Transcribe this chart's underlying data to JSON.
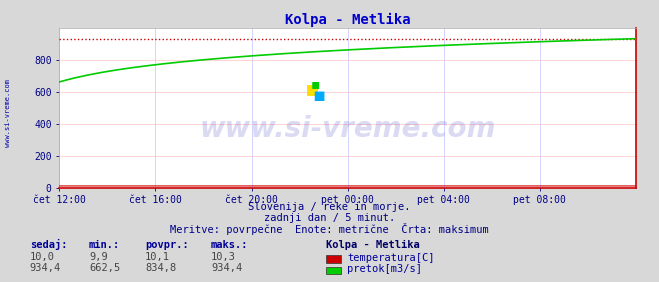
{
  "title": "Kolpa - Metlika",
  "title_color": "#0000cc",
  "bg_color": "#d8d8d8",
  "plot_bg_color": "#ffffff",
  "grid_color_h": "#ffcccc",
  "grid_color_v": "#ccccff",
  "xlabel_ticks": [
    "čet 12:00",
    "čet 16:00",
    "čet 20:00",
    "pet 00:00",
    "pet 04:00",
    "pet 08:00"
  ],
  "tick_color": "#000088",
  "ylabel_values": [
    0,
    200,
    400,
    600,
    800
  ],
  "ylim": [
    0,
    1000
  ],
  "xlim": [
    0,
    1152
  ],
  "xtick_positions": [
    0,
    192,
    384,
    576,
    768,
    960
  ],
  "watermark": "www.si-vreme.com",
  "watermark_color": "#3333bb",
  "watermark_alpha": 0.18,
  "subtitle1": "Slovenija / reke in morje.",
  "subtitle2": "zadnji dan / 5 minut.",
  "subtitle3": "Meritve: povrpečne  Enote: metrične  Črta: maksimum",
  "subtitle_color": "#000088",
  "legend_title": "Kolpa - Metlika",
  "legend_title_color": "#000066",
  "legend_color1": "#cc0000",
  "legend_color2": "#00cc00",
  "legend_label1": "temperatura[C]",
  "legend_label2": "pretok[m3/s]",
  "table_headers": [
    "sedaj:",
    "min.:",
    "povpr.:",
    "maks.:"
  ],
  "table_row1": [
    "10,0",
    "9,9",
    "10,1",
    "10,3"
  ],
  "table_row2": [
    "934,4",
    "662,5",
    "834,8",
    "934,4"
  ],
  "table_color": "#000099",
  "table_value_color": "#444444",
  "flow_start": 662.5,
  "flow_end": 934.4,
  "flow_max": 934.4,
  "max_line_color": "#cc0000",
  "temp_line_color": "#cc0000",
  "flow_line_color": "#00cc00",
  "left_label": "www.si-vreme.com",
  "left_label_color": "#0000aa",
  "spine_color": "#aaaaaa",
  "bottom_spine_color": "#cc0000",
  "right_spine_color": "#cc0000"
}
